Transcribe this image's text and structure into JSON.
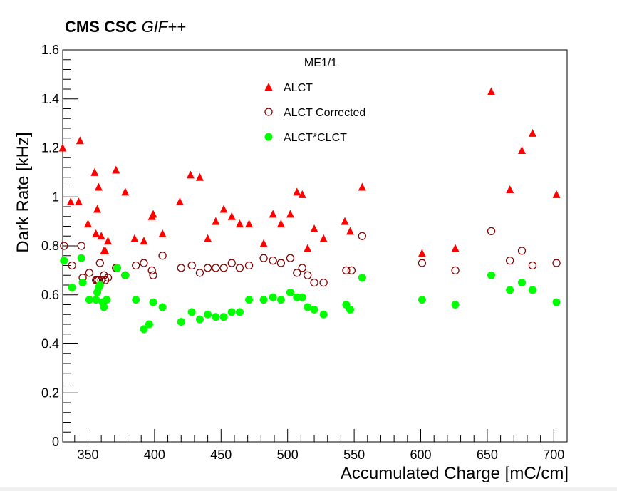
{
  "chart_data": {
    "type": "scatter",
    "experiment_label": "CMS CSC",
    "facility_label": "GIF++",
    "title": "ME1/1",
    "xlabel": "Accumulated Charge [mC/cm]",
    "ylabel": "Dark Rate [kHz]",
    "xlim": [
      331,
      710
    ],
    "ylim": [
      0,
      1.6
    ],
    "x_ticks": [
      "350",
      "400",
      "450",
      "500",
      "550",
      "600",
      "650",
      "700"
    ],
    "y_ticks": [
      "0",
      "0.2",
      "0.4",
      "0.6",
      "0.8",
      "1",
      "1.2",
      "1.4",
      "1.6"
    ],
    "grid": false,
    "legend_placement": "top-center",
    "series": [
      {
        "name": "ALCT",
        "marker": "filled-triangle",
        "color": "#ff0000",
        "points": [
          [
            331,
            1.2
          ],
          [
            337,
            0.98
          ],
          [
            343,
            0.98
          ],
          [
            344,
            1.23
          ],
          [
            350,
            0.89
          ],
          [
            355,
            1.1
          ],
          [
            356,
            0.85
          ],
          [
            357,
            0.95
          ],
          [
            358,
            1.04
          ],
          [
            360,
            0.84
          ],
          [
            362,
            0.78
          ],
          [
            363,
            0.78
          ],
          [
            365,
            0.82
          ],
          [
            371,
            1.11
          ],
          [
            378,
            1.02
          ],
          [
            385,
            0.83
          ],
          [
            392,
            0.82
          ],
          [
            398,
            0.92
          ],
          [
            399,
            0.93
          ],
          [
            406,
            0.85
          ],
          [
            419,
            0.98
          ],
          [
            427,
            1.09
          ],
          [
            434,
            1.08
          ],
          [
            440,
            0.83
          ],
          [
            446,
            0.9
          ],
          [
            452,
            0.95
          ],
          [
            458,
            0.92
          ],
          [
            464,
            0.89
          ],
          [
            471,
            0.89
          ],
          [
            482,
            0.81
          ],
          [
            489,
            0.93
          ],
          [
            495,
            0.89
          ],
          [
            502,
            0.93
          ],
          [
            507,
            1.02
          ],
          [
            511,
            1.01
          ],
          [
            515,
            0.79
          ],
          [
            520,
            0.87
          ],
          [
            527,
            0.83
          ],
          [
            543,
            0.9
          ],
          [
            547,
            0.86
          ],
          [
            556,
            1.04
          ],
          [
            601,
            0.77
          ],
          [
            626,
            0.79
          ],
          [
            653,
            1.43
          ],
          [
            667,
            1.03
          ],
          [
            676,
            1.19
          ],
          [
            684,
            1.26
          ],
          [
            702,
            1.01
          ]
        ]
      },
      {
        "name": "ALCT Corrected",
        "marker": "open-circle",
        "color": "#800000",
        "points": [
          [
            332,
            0.8
          ],
          [
            338,
            0.72
          ],
          [
            345,
            0.8
          ],
          [
            346,
            0.67
          ],
          [
            351,
            0.69
          ],
          [
            356,
            0.66
          ],
          [
            357,
            0.66
          ],
          [
            358,
            0.66
          ],
          [
            359,
            0.73
          ],
          [
            360,
            0.66
          ],
          [
            362,
            0.68
          ],
          [
            363,
            0.66
          ],
          [
            365,
            0.67
          ],
          [
            371,
            0.71
          ],
          [
            378,
            0.68
          ],
          [
            386,
            0.72
          ],
          [
            392,
            0.73
          ],
          [
            398,
            0.7
          ],
          [
            399,
            0.68
          ],
          [
            406,
            0.76
          ],
          [
            420,
            0.71
          ],
          [
            428,
            0.72
          ],
          [
            434,
            0.69
          ],
          [
            440,
            0.71
          ],
          [
            446,
            0.71
          ],
          [
            452,
            0.71
          ],
          [
            458,
            0.73
          ],
          [
            464,
            0.71
          ],
          [
            471,
            0.72
          ],
          [
            482,
            0.75
          ],
          [
            489,
            0.74
          ],
          [
            495,
            0.73
          ],
          [
            502,
            0.75
          ],
          [
            507,
            0.69
          ],
          [
            511,
            0.71
          ],
          [
            515,
            0.68
          ],
          [
            520,
            0.65
          ],
          [
            527,
            0.65
          ],
          [
            544,
            0.7
          ],
          [
            548,
            0.7
          ],
          [
            556,
            0.84
          ],
          [
            601,
            0.73
          ],
          [
            626,
            0.7
          ],
          [
            653,
            0.86
          ],
          [
            667,
            0.74
          ],
          [
            676,
            0.78
          ],
          [
            684,
            0.72
          ],
          [
            702,
            0.73
          ]
        ]
      },
      {
        "name": "ALCT*CLCT",
        "marker": "filled-circle",
        "color": "#00ff00",
        "points": [
          [
            332,
            0.74
          ],
          [
            338,
            0.63
          ],
          [
            345,
            0.75
          ],
          [
            346,
            0.65
          ],
          [
            351,
            0.58
          ],
          [
            356,
            0.58
          ],
          [
            357,
            0.61
          ],
          [
            358,
            0.63
          ],
          [
            359,
            0.64
          ],
          [
            361,
            0.57
          ],
          [
            362,
            0.55
          ],
          [
            364,
            0.58
          ],
          [
            372,
            0.71
          ],
          [
            378,
            0.68
          ],
          [
            386,
            0.58
          ],
          [
            392,
            0.46
          ],
          [
            396,
            0.48
          ],
          [
            399,
            0.57
          ],
          [
            406,
            0.55
          ],
          [
            420,
            0.49
          ],
          [
            428,
            0.53
          ],
          [
            434,
            0.5
          ],
          [
            440,
            0.52
          ],
          [
            446,
            0.51
          ],
          [
            452,
            0.51
          ],
          [
            458,
            0.53
          ],
          [
            464,
            0.53
          ],
          [
            471,
            0.58
          ],
          [
            482,
            0.58
          ],
          [
            489,
            0.59
          ],
          [
            495,
            0.58
          ],
          [
            502,
            0.61
          ],
          [
            507,
            0.59
          ],
          [
            511,
            0.59
          ],
          [
            515,
            0.55
          ],
          [
            520,
            0.54
          ],
          [
            527,
            0.52
          ],
          [
            544,
            0.56
          ],
          [
            547,
            0.54
          ],
          [
            556,
            0.67
          ],
          [
            601,
            0.58
          ],
          [
            626,
            0.56
          ],
          [
            653,
            0.68
          ],
          [
            667,
            0.62
          ],
          [
            676,
            0.65
          ],
          [
            684,
            0.62
          ],
          [
            702,
            0.57
          ]
        ]
      }
    ]
  }
}
